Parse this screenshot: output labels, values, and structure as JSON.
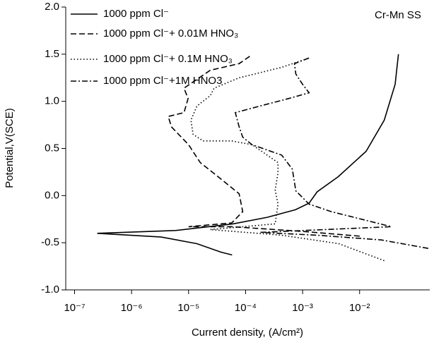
{
  "chart_data": {
    "type": "line",
    "annotation": "Cr-Mn SS",
    "x_label": "Current density, (A/cm²)",
    "y_label": "Potential,V(SCE)",
    "log_x": true,
    "grid": false,
    "legend": "upper left",
    "xlim": [
      7e-08,
      0.17
    ],
    "xticks": [
      {
        "value": 1e-07,
        "label": "10⁻⁷"
      },
      {
        "value": 1e-06,
        "label": "10⁻⁶"
      },
      {
        "value": 1e-05,
        "label": "10⁻⁵"
      },
      {
        "value": 0.0001,
        "label": "10⁻⁴"
      },
      {
        "value": 0.001,
        "label": "10⁻³"
      },
      {
        "value": 0.01,
        "label": "10⁻²"
      }
    ],
    "ylim": [
      -1,
      2
    ],
    "yticks": [
      {
        "value": -1,
        "label": "-1.0"
      },
      {
        "value": -0.5,
        "label": "-0.5"
      },
      {
        "value": 0,
        "label": "0.0"
      },
      {
        "value": 0.5,
        "label": "0.5"
      },
      {
        "value": 1,
        "label": "1.0"
      },
      {
        "value": 1.5,
        "label": "1.5"
      },
      {
        "value": 2,
        "label": "2.0"
      }
    ],
    "series": [
      {
        "name": "1000 ppm Cl⁻",
        "color": "#000000",
        "dash": "solid",
        "x": [
          5.8e-05,
          3.7e-05,
          1.4e-05,
          3.3e-06,
          2.5e-07,
          5.9e-06,
          6e-05,
          0.00024,
          0.00075,
          0.0013,
          0.0018,
          0.0042,
          0.013,
          0.027,
          0.042,
          0.048
        ],
        "values": [
          -0.63,
          -0.6,
          -0.51,
          -0.44,
          -0.4,
          -0.37,
          -0.3,
          -0.23,
          -0.15,
          -0.08,
          0.04,
          0.2,
          0.47,
          0.8,
          1.18,
          1.5
        ]
      },
      {
        "name": "1000 ppm Cl⁻+ 0.01M HNO₃",
        "color": "#000000",
        "dash": "dashed",
        "x": [
          0.01,
          0.001,
          5.7e-05,
          1e-05,
          5.7e-05,
          8.9e-05,
          7.7e-05,
          3.3e-05,
          1.6e-05,
          1e-05,
          5e-06,
          4.4e-06,
          8.3e-06,
          9.8e-06,
          8.3e-06,
          2.4e-05,
          7.7e-05,
          0.00012
        ],
        "values": [
          -0.43,
          -0.38,
          -0.33,
          -0.33,
          -0.29,
          -0.17,
          0.02,
          0.2,
          0.35,
          0.54,
          0.73,
          0.84,
          0.88,
          1.03,
          1.14,
          1.33,
          1.4,
          1.48
        ]
      },
      {
        "name": "1000 ppm Cl⁻+ 0.1M HNO₃",
        "color": "#000000",
        "dash": "dotted",
        "x": [
          0.027,
          0.0043,
          0.00043,
          2.4e-05,
          0.00033,
          0.00037,
          0.00033,
          0.00037,
          0.00037,
          0.00013,
          5.7e-05,
          1.8e-05,
          1.2e-05,
          1.1e-05,
          1.4e-05,
          2.4e-05,
          2.8e-05,
          7.7e-05,
          0.00043,
          0.0013
        ],
        "values": [
          -0.69,
          -0.51,
          -0.42,
          -0.36,
          -0.3,
          -0.09,
          0.06,
          0.24,
          0.35,
          0.54,
          0.58,
          0.58,
          0.65,
          0.8,
          0.95,
          1.06,
          1.14,
          1.25,
          1.36,
          1.46
        ]
      },
      {
        "name": "1000 ppm Cl⁻+1M HNO3",
        "color": "#000000",
        "dash": "dashdot",
        "x": [
          0.16,
          0.024,
          0.0018,
          0.00018,
          0.036,
          0.0032,
          0.0013,
          0.00076,
          0.00066,
          0.00043,
          0.00013,
          8.9e-05,
          7.7e-05,
          6.6e-05,
          0.00018,
          0.00057,
          0.0013,
          0.001,
          0.00076,
          0.00072,
          0.0013
        ],
        "values": [
          -0.56,
          -0.47,
          -0.42,
          -0.39,
          -0.33,
          -0.17,
          -0.09,
          0.05,
          0.28,
          0.43,
          0.54,
          0.62,
          0.73,
          0.88,
          0.95,
          1.03,
          1.09,
          1.18,
          1.29,
          1.4,
          1.46
        ]
      }
    ]
  }
}
